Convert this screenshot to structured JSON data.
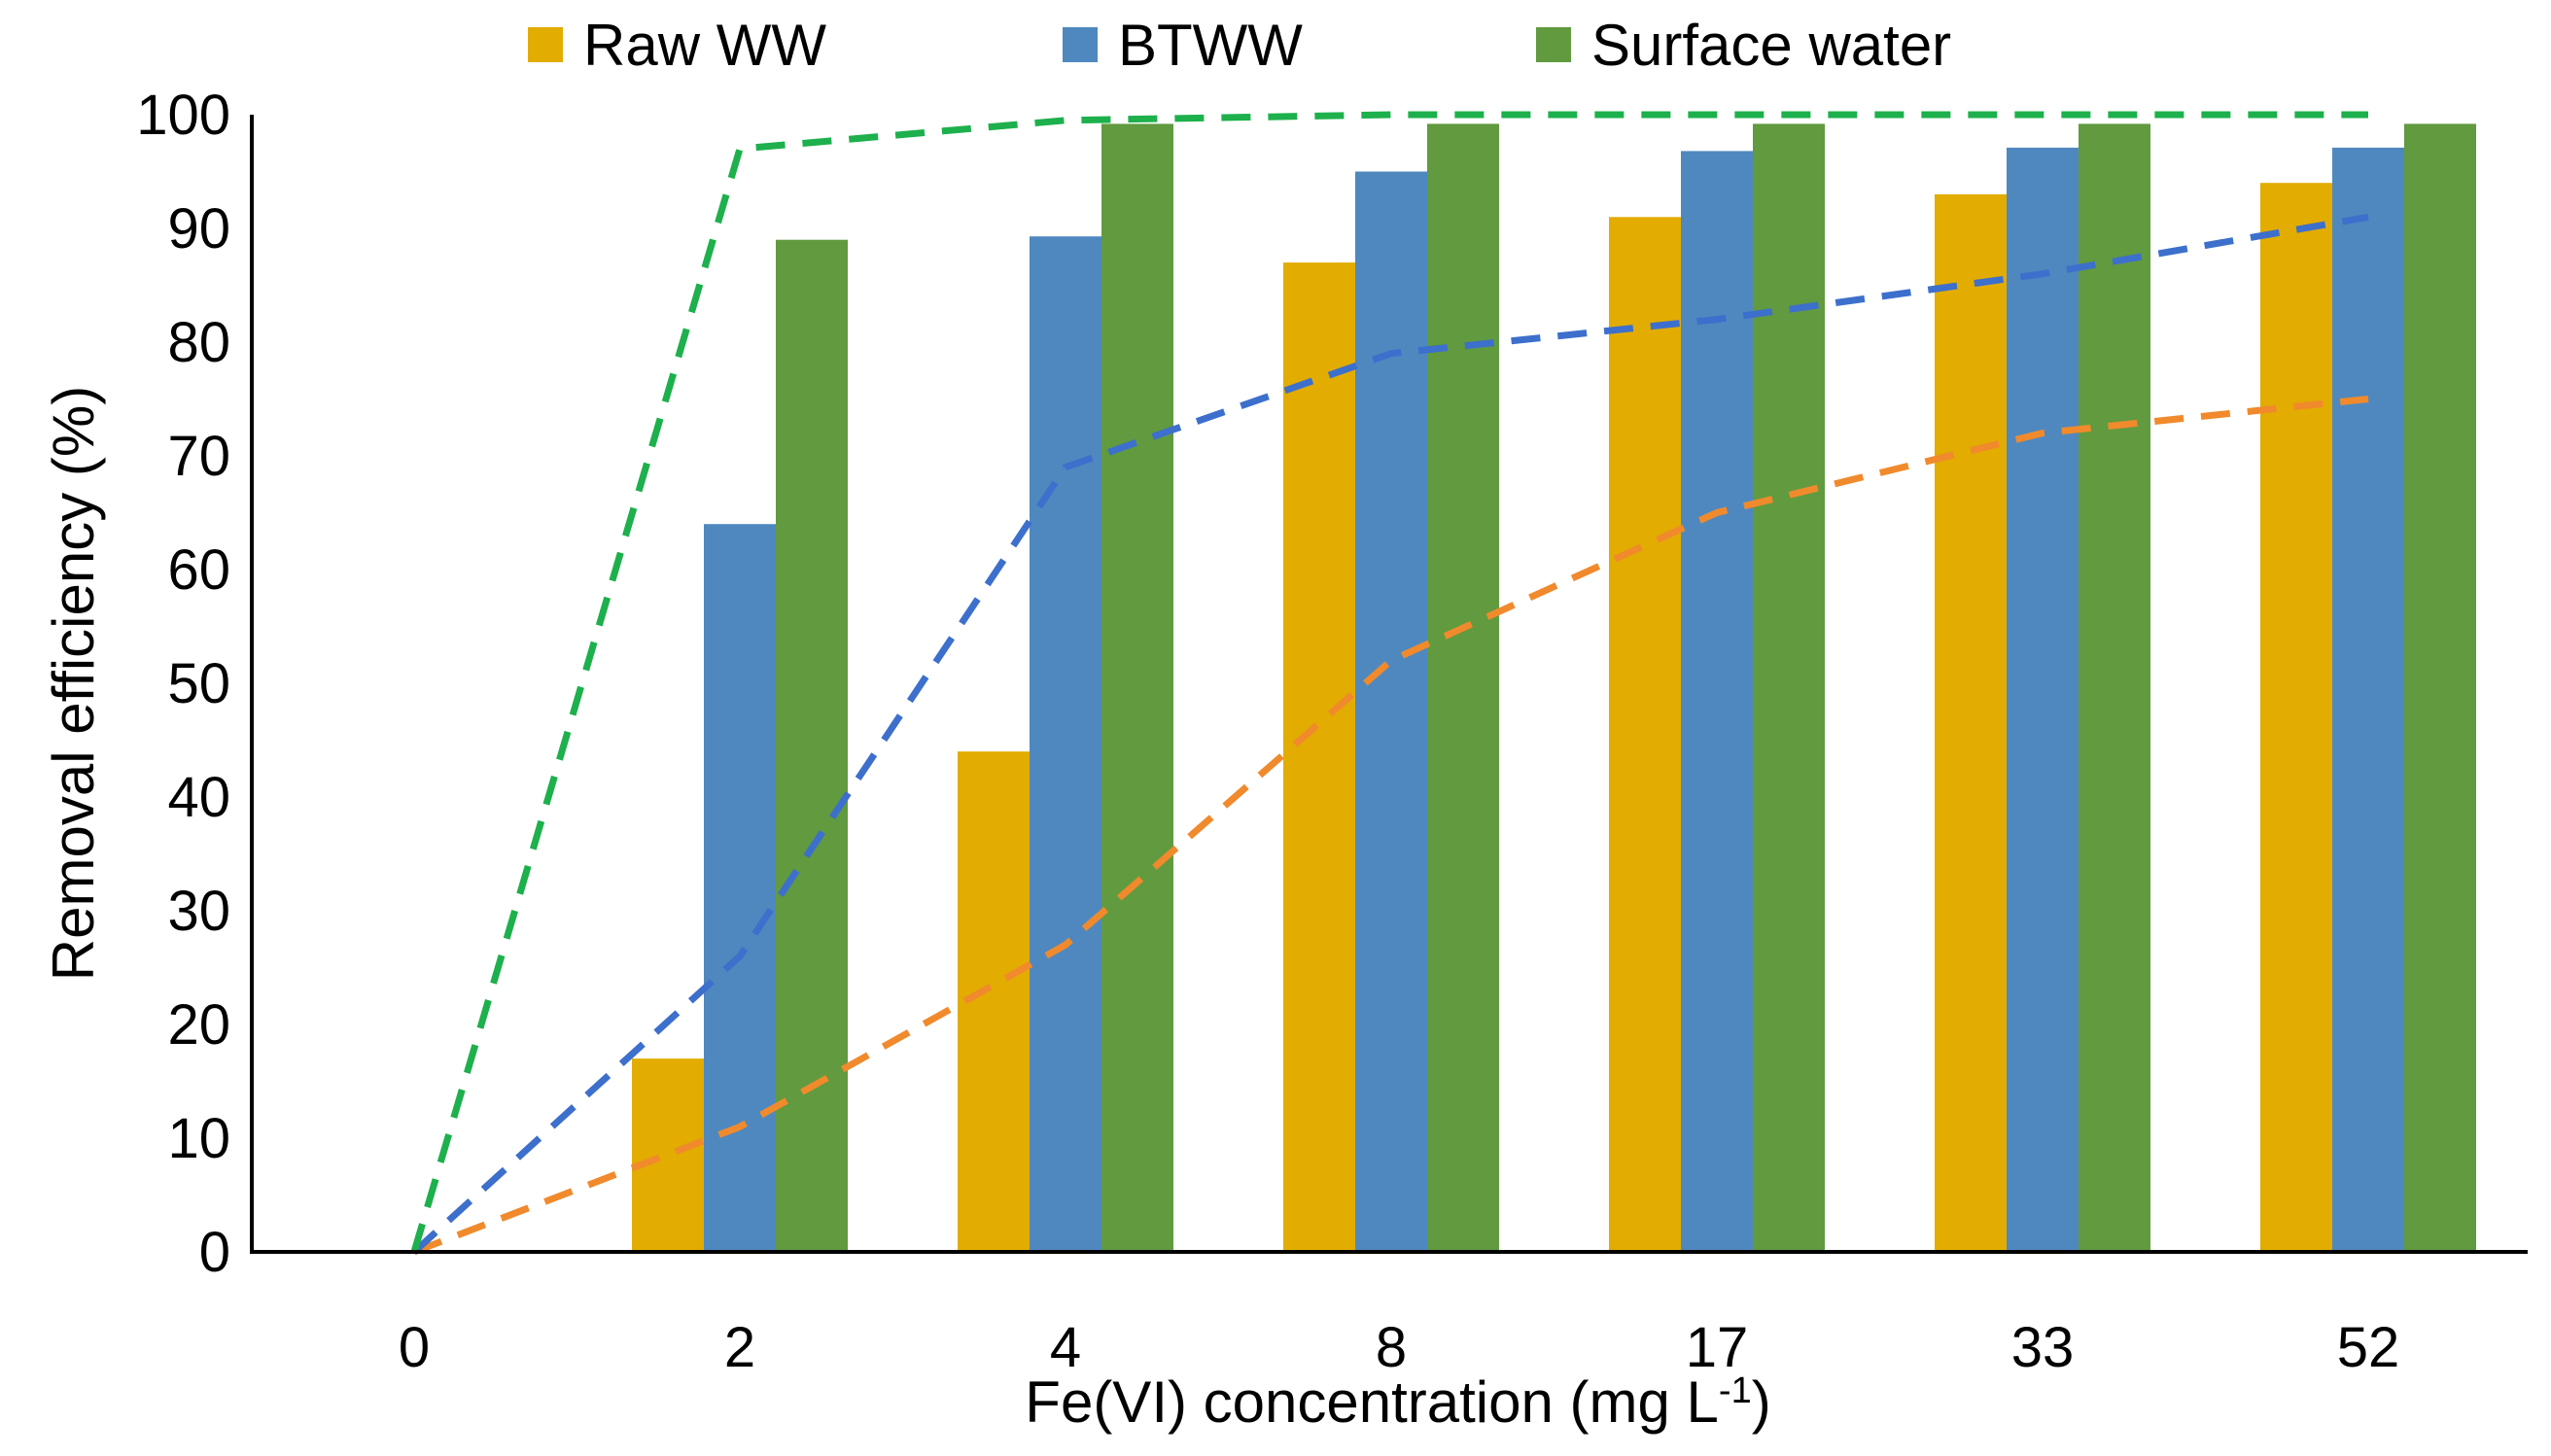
{
  "chart_data": {
    "type": "bar",
    "categories": [
      "0",
      "2",
      "4",
      "8",
      "17",
      "33",
      "52"
    ],
    "series": [
      {
        "name": "Raw WW",
        "color": "#E2AC00",
        "values": [
          0,
          17,
          44,
          87,
          91,
          93,
          94
        ]
      },
      {
        "name": "BTWW",
        "color": "#4F88BF",
        "values": [
          0,
          64,
          89.3,
          95,
          96.8,
          97.1,
          97.1
        ]
      },
      {
        "name": "Surface water",
        "color": "#619A3F",
        "values": [
          0,
          89,
          99.2,
          99.2,
          99.2,
          99.2,
          99.2
        ]
      }
    ],
    "trend_lines": [
      {
        "series": "Raw WW",
        "style": "dashed",
        "color": "#F08A2C",
        "values": [
          0,
          11,
          27,
          52,
          65,
          72,
          75
        ]
      },
      {
        "series": "BTWW",
        "style": "dashed",
        "color": "#3D6FCC",
        "values": [
          0,
          26,
          69,
          79,
          82,
          86,
          91
        ]
      },
      {
        "series": "Surface water",
        "style": "dashed",
        "color": "#1DB04C",
        "values": [
          0,
          97,
          99.5,
          100,
          100,
          100,
          100
        ]
      }
    ],
    "xlabel": "Fe(VI) concentration (mg L",
    "xlabel_superscript": "-1",
    "xlabel_suffix": ")",
    "ylabel": "Removal efficiency (%)",
    "ylim": [
      0,
      100
    ],
    "yticks": [
      "0",
      "10",
      "20",
      "30",
      "40",
      "50",
      "60",
      "70",
      "80",
      "90",
      "100"
    ],
    "grid": false,
    "legend_position": "top"
  }
}
